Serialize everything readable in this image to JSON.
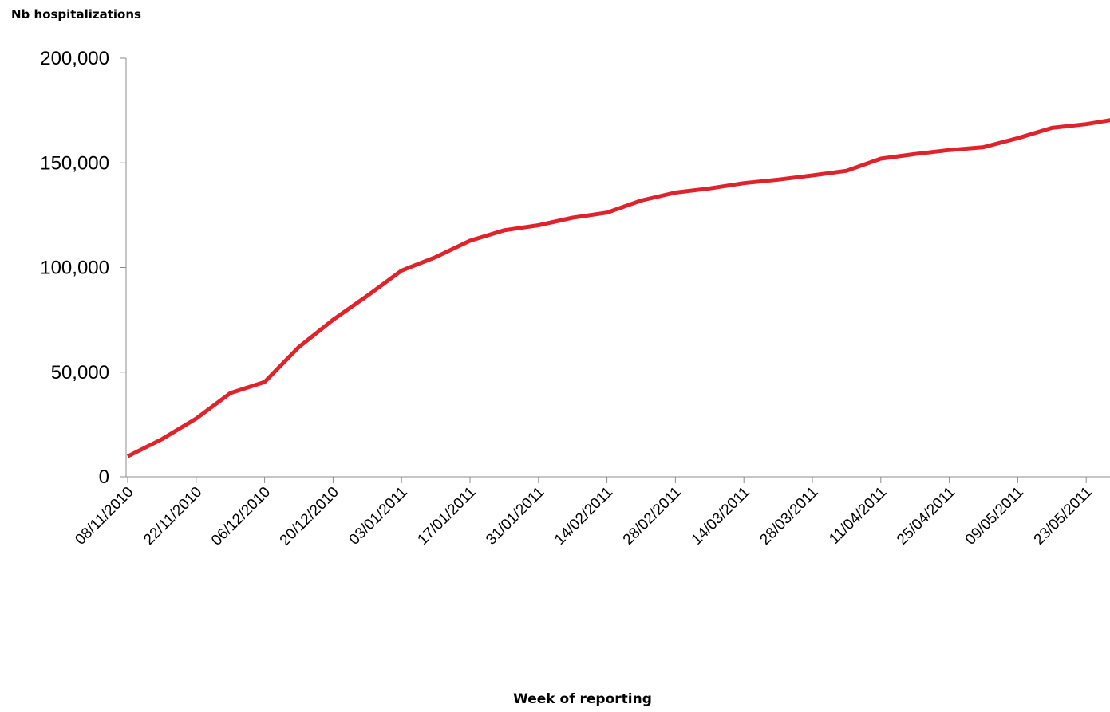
{
  "chart_data": {
    "type": "line",
    "title": "",
    "ylabel": "Nb hospitalizations",
    "xlabel": "Week of reporting",
    "ylim": [
      0,
      200000
    ],
    "yticks": [
      0,
      50000,
      100000,
      150000,
      200000
    ],
    "ytick_labels": [
      "0",
      "50,000",
      "100,000",
      "150,000",
      "200,000"
    ],
    "grid": false,
    "legend": "none",
    "x_tick_labels": [
      "08/11/2010",
      "22/11/2010",
      "06/12/2010",
      "20/12/2010",
      "03/01/2011",
      "17/01/2011",
      "31/01/2011",
      "14/02/2011",
      "28/02/2011",
      "14/03/2011",
      "28/03/2011",
      "11/04/2011",
      "25/04/2011",
      "09/05/2011",
      "23/05/2011"
    ],
    "x": [
      "08/11/2010",
      "15/11/2010",
      "22/11/2010",
      "29/11/2010",
      "06/12/2010",
      "13/12/2010",
      "20/12/2010",
      "27/12/2010",
      "03/01/2011",
      "10/01/2011",
      "17/01/2011",
      "24/01/2011",
      "31/01/2011",
      "07/02/2011",
      "14/02/2011",
      "21/02/2011",
      "28/02/2011",
      "07/03/2011",
      "14/03/2011",
      "21/03/2011",
      "28/03/2011",
      "04/04/2011",
      "11/04/2011",
      "18/04/2011",
      "25/04/2011",
      "02/05/2011",
      "09/05/2011",
      "16/05/2011",
      "23/05/2011",
      "30/05/2011"
    ],
    "series": [
      {
        "values": [
          9800,
          18000,
          27800,
          40000,
          45300,
          62000,
          75000,
          86500,
          98500,
          105000,
          112800,
          117800,
          120200,
          123800,
          126200,
          132000,
          135800,
          137800,
          140300,
          142000,
          144000,
          146200,
          152000,
          154200,
          156100,
          157500,
          161800,
          166700,
          168500,
          171200
        ]
      }
    ],
    "colors": {
      "line": "#e0232b",
      "axis": "#8c8c8c",
      "text": "#000000"
    }
  }
}
